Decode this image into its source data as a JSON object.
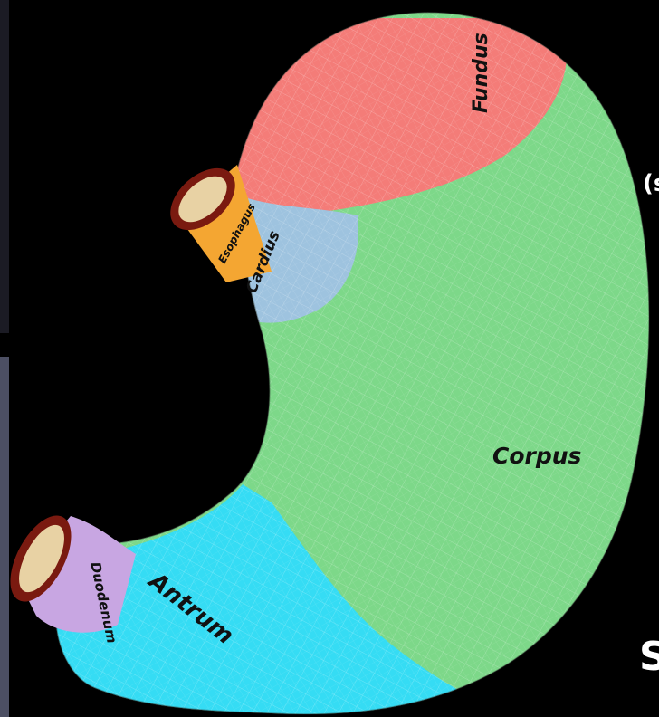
{
  "regions": {
    "fundus": "Fundus",
    "esophagus": "Esophagus",
    "cardius": "Cardius",
    "corpus": "Corpus",
    "antrum": "Antrum",
    "duodenum": "Duodenum"
  },
  "edge_text": {
    "right_upper": "(s",
    "right_lower": "S"
  },
  "colors": {
    "fundus": "#f47c78",
    "corpus": "#7dd889",
    "cardius": "#9ec3df",
    "antrum": "#35dcf4",
    "duodenum": "#c8a6e2",
    "esophagus": "#f4a632",
    "tube_rim": "#7a1a10",
    "tube_inner": "#e8d2a4"
  }
}
